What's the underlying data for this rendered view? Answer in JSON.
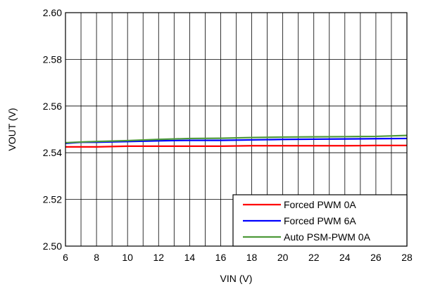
{
  "chart_data": {
    "type": "line",
    "title": "",
    "xlabel": "VIN (V)",
    "ylabel": "VOUT (V)",
    "xlim": [
      6,
      28
    ],
    "ylim": [
      2.5,
      2.6
    ],
    "x_ticks": [
      "6",
      "8",
      "10",
      "12",
      "14",
      "16",
      "18",
      "20",
      "22",
      "24",
      "26",
      "28"
    ],
    "y_ticks": [
      "2.50",
      "2.52",
      "2.54",
      "2.56",
      "2.58",
      "2.60"
    ],
    "x_minor_step": 1,
    "grid": true,
    "legend_position": "bottom-right",
    "x": [
      6,
      7,
      8,
      10,
      12,
      14,
      16,
      18,
      20,
      22,
      24,
      26,
      28
    ],
    "series": [
      {
        "name": "Forced PWM 0A",
        "color": "#ff0000",
        "values": [
          2.5425,
          2.5425,
          2.5425,
          2.5428,
          2.5428,
          2.5428,
          2.5428,
          2.543,
          2.543,
          2.543,
          2.543,
          2.5431,
          2.5431
        ]
      },
      {
        "name": "Forced PWM 6A",
        "color": "#0000ff",
        "values": [
          2.544,
          2.5445,
          2.5445,
          2.5448,
          2.5451,
          2.5453,
          2.5453,
          2.5455,
          2.5457,
          2.5458,
          2.5459,
          2.546,
          2.5461
        ]
      },
      {
        "name": "Auto PSM-PWM 0A",
        "color": "#4e9a3a",
        "values": [
          2.5443,
          2.5446,
          2.5448,
          2.5452,
          2.5457,
          2.5461,
          2.5462,
          2.5465,
          2.5467,
          2.5468,
          2.5469,
          2.547,
          2.5474
        ]
      }
    ]
  }
}
